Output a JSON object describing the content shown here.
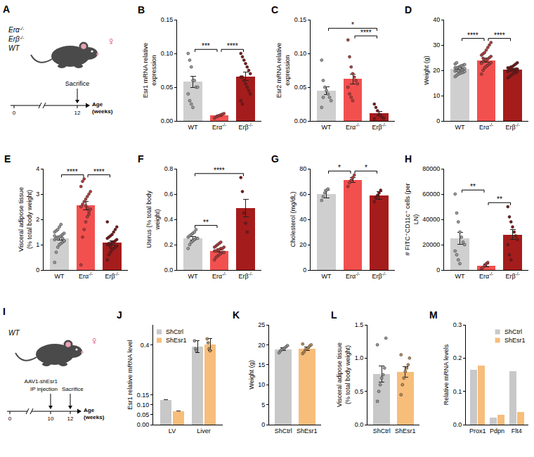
{
  "chart_data": [
    {
      "panel": "B",
      "type": "bar",
      "categories": [
        "WT",
        "Erα-/-",
        "Erβ-/-"
      ],
      "colors": [
        "#cfcfcf",
        "#f2504f",
        "#a51c1c"
      ],
      "values": [
        0.058,
        0.008,
        0.066
      ],
      "errors": [
        0.008,
        0.001,
        0.006
      ],
      "points": [
        [
          0.1,
          0.09,
          0.08,
          0.06,
          0.06,
          0.05,
          0.05,
          0.04,
          0.03,
          0.025,
          0.02
        ],
        [
          0.004,
          0.006,
          0.007,
          0.008,
          0.009,
          0.01,
          0.011
        ],
        [
          0.1,
          0.095,
          0.09,
          0.085,
          0.08,
          0.075,
          0.07,
          0.065,
          0.065,
          0.06,
          0.055,
          0.05,
          0.045,
          0.04,
          0.03,
          0.025
        ]
      ],
      "y_title": "Esr1 mRNA relative expression",
      "ylim": [
        0,
        0.15
      ],
      "yticks": [
        {
          "value": 0,
          "label": "0.00"
        },
        0.05,
        {
          "value": 0.1,
          "label": "0.10"
        },
        0.15
      ],
      "comparisons": [
        {
          "from": 0,
          "to": 1,
          "label": "***"
        },
        {
          "from": 1,
          "to": 2,
          "label": "****"
        }
      ]
    },
    {
      "panel": "C",
      "type": "bar",
      "categories": [
        "WT",
        "Erα-/-",
        "Erβ-/-"
      ],
      "colors": [
        "#cfcfcf",
        "#f2504f",
        "#a51c1c"
      ],
      "values": [
        0.045,
        0.062,
        0.011
      ],
      "errors": [
        0.006,
        0.007,
        0.003
      ],
      "points": [
        [
          0.09,
          0.06,
          0.05,
          0.045,
          0.04,
          0.035,
          0.03,
          0.02,
          0.035
        ],
        [
          0.12,
          0.095,
          0.08,
          0.07,
          0.065,
          0.06,
          0.055,
          0.05,
          0.04,
          0.035,
          0.03
        ],
        [
          0.025,
          0.02,
          0.015,
          0.01,
          0.008,
          0.005,
          0.004,
          0.003
        ]
      ],
      "y_title": "Esr2 mRNA relative expression",
      "ylim": [
        0,
        0.15
      ],
      "yticks": [
        {
          "value": 0,
          "label": "0.00"
        },
        0.05,
        {
          "value": 0.1,
          "label": "0.10"
        },
        0.15
      ],
      "comparisons": [
        {
          "from": 0,
          "to": 2,
          "label": "*"
        },
        {
          "from": 1,
          "to": 2,
          "label": "****"
        }
      ]
    },
    {
      "panel": "D",
      "type": "bar",
      "categories": [
        "WT",
        "Erα-/-",
        "Erβ-/-"
      ],
      "colors": [
        "#cfcfcf",
        "#f2504f",
        "#a51c1c"
      ],
      "values": [
        20.5,
        24,
        20.3
      ],
      "errors": [
        0.4,
        0.8,
        0.3
      ],
      "points": [
        [
          17.5,
          18,
          18.5,
          18.8,
          19,
          19.2,
          19.5,
          19.7,
          20,
          20,
          20.2,
          20.4,
          20.5,
          20.7,
          21,
          21,
          21.2,
          21.5,
          21.8,
          22,
          22.3,
          22.5,
          23,
          19.8,
          20.8
        ],
        [
          18.5,
          20,
          21,
          21.5,
          22,
          22.5,
          23,
          23,
          23.5,
          24,
          24,
          24.5,
          25,
          25.5,
          26,
          26.5,
          27,
          28,
          29,
          30,
          31,
          22.8,
          24.8
        ],
        [
          17,
          17.5,
          18,
          18.5,
          19,
          19,
          19.5,
          19.5,
          20,
          20,
          20,
          20.3,
          20.5,
          20.5,
          21,
          21,
          21.3,
          21.5,
          22,
          22.5,
          23,
          19.8,
          20.2,
          20.8
        ]
      ],
      "y_title": "Weight (g)",
      "ylim": [
        0,
        40
      ],
      "yticks": [
        0,
        10,
        20,
        30,
        40
      ],
      "comparisons": [
        {
          "from": 0,
          "to": 1,
          "label": "****"
        },
        {
          "from": 1,
          "to": 2,
          "label": "****"
        }
      ]
    },
    {
      "panel": "E",
      "type": "bar",
      "categories": [
        "WT",
        "Erα-/-",
        "Erβ-/-"
      ],
      "colors": [
        "#cfcfcf",
        "#f2504f",
        "#a51c1c"
      ],
      "values": [
        1.25,
        2.55,
        1.08
      ],
      "errors": [
        0.07,
        0.17,
        0.08
      ],
      "points": [
        [
          0.3,
          0.7,
          0.9,
          1.0,
          1.05,
          1.1,
          1.15,
          1.2,
          1.25,
          1.3,
          1.3,
          1.35,
          1.4,
          1.45,
          1.5,
          1.55,
          1.6,
          1.7,
          1.8,
          1.25,
          1.15,
          1.35
        ],
        [
          0.2,
          1.3,
          1.6,
          1.9,
          2.1,
          2.3,
          2.4,
          2.5,
          2.6,
          2.7,
          2.8,
          2.9,
          3.0,
          3.1,
          3.3,
          3.5,
          3.6,
          2.55,
          2.45,
          2.2
        ],
        [
          0.4,
          0.6,
          0.7,
          0.8,
          0.85,
          0.9,
          0.95,
          1.0,
          1.0,
          1.05,
          1.1,
          1.1,
          1.15,
          1.2,
          1.25,
          1.3,
          1.35,
          1.4,
          1.5,
          1.6,
          1.7,
          1.9,
          1.05,
          0.9
        ]
      ],
      "y_title": "Visceral adipose tissue (% total body weight)",
      "ylim": [
        0,
        4
      ],
      "yticks": [
        0,
        1,
        2,
        3,
        4
      ],
      "comparisons": [
        {
          "from": 0,
          "to": 1,
          "label": "****"
        },
        {
          "from": 1,
          "to": 2,
          "label": "****"
        }
      ]
    },
    {
      "panel": "F",
      "type": "bar",
      "categories": [
        "WT",
        "Erα-/-",
        "Erβ-/-"
      ],
      "colors": [
        "#cfcfcf",
        "#f2504f",
        "#a51c1c"
      ],
      "values": [
        0.25,
        0.15,
        0.49
      ],
      "errors": [
        0.015,
        0.01,
        0.07
      ],
      "points": [
        [
          0.17,
          0.2,
          0.22,
          0.23,
          0.24,
          0.25,
          0.25,
          0.26,
          0.27,
          0.28,
          0.29,
          0.3,
          0.32
        ],
        [
          0.08,
          0.1,
          0.11,
          0.12,
          0.13,
          0.14,
          0.14,
          0.15,
          0.15,
          0.16,
          0.16,
          0.17,
          0.17,
          0.18,
          0.18,
          0.19,
          0.2,
          0.21,
          0.22
        ],
        [
          0.73,
          0.62,
          0.45,
          0.37,
          0.3
        ]
      ],
      "y_title": "Uterus (% total body weight)",
      "ylim": [
        0,
        0.8
      ],
      "yticks": [
        {
          "value": 0,
          "label": "0.0"
        },
        0.2,
        0.4,
        0.6,
        0.8
      ],
      "comparisons": [
        {
          "from": 0,
          "to": 1,
          "label": "**"
        },
        {
          "from": 0,
          "to": 2,
          "label": "****"
        }
      ]
    },
    {
      "panel": "G",
      "type": "bar",
      "categories": [
        "WT",
        "Erα-/-",
        "Erβ-/-"
      ],
      "colors": [
        "#cfcfcf",
        "#f2504f",
        "#a51c1c"
      ],
      "values": [
        60,
        71,
        59
      ],
      "errors": [
        3,
        2,
        3
      ],
      "points": [
        [
          55,
          58,
          61,
          63,
          64
        ],
        [
          66,
          69,
          71,
          73,
          75
        ],
        [
          54,
          57,
          59,
          61,
          63
        ]
      ],
      "y_title": "Cholesterol (mg/dL)",
      "ylim": [
        0,
        80
      ],
      "yticks": [
        0,
        20,
        40,
        60,
        80
      ],
      "comparisons": [
        {
          "from": 0,
          "to": 1,
          "label": "*"
        },
        {
          "from": 1,
          "to": 2,
          "label": "*"
        }
      ]
    },
    {
      "panel": "H",
      "type": "bar",
      "categories": [
        "WT",
        "Erα-/-",
        "Erβ-/-"
      ],
      "colors": [
        "#cfcfcf",
        "#f2504f",
        "#a51c1c"
      ],
      "values": [
        25000,
        3500,
        28000
      ],
      "errors": [
        4500,
        1000,
        4000
      ],
      "points": [
        [
          60000,
          45000,
          38000,
          30000,
          26000,
          22000,
          20000,
          15000,
          12000,
          8000,
          5000
        ],
        [
          1000,
          2000,
          3500,
          5000,
          6000
        ],
        [
          50000,
          42000,
          38000,
          34000,
          30000,
          27000,
          24000,
          20000,
          12000,
          8000
        ]
      ],
      "y_title": "# FITC⁺CD11c⁺ cells (per LN)",
      "ylim": [
        0,
        80000
      ],
      "yticks": [
        0,
        20000,
        40000,
        60000,
        80000
      ],
      "comparisons": [
        {
          "from": 0,
          "to": 1,
          "label": "**"
        },
        {
          "from": 1,
          "to": 2,
          "label": "**"
        }
      ]
    },
    {
      "panel": "J",
      "type": "bar",
      "categories": [
        "LV",
        "Liver"
      ],
      "legend": "upper left",
      "series": [
        {
          "name": "ShCtrl",
          "color": "#c8c8c8",
          "values": [
            0.125,
            0.39
          ],
          "errors": [
            null,
            0.03
          ],
          "points": [
            [],
            [
              0.42,
              0.38,
              0.37
            ]
          ]
        },
        {
          "name": "ShEsr1",
          "color": "#f7bd7a",
          "values": [
            0.068,
            0.4
          ],
          "errors": [
            null,
            0.03
          ],
          "points": [
            [],
            [
              0.43,
              0.41,
              0.38,
              0.37
            ]
          ]
        }
      ],
      "y_title": "Esr1 relative mRNA level",
      "ylim": [
        0,
        0.5
      ],
      "yticks": [
        {
          "value": 0,
          "label": "0.00"
        },
        0.05,
        {
          "value": 0.1,
          "label": "0.10"
        },
        0.15,
        0.4
      ]
    },
    {
      "panel": "K",
      "type": "bar",
      "categories": [
        "ShCtrl",
        "ShEsr1"
      ],
      "colors": [
        "#c8c8c8",
        "#f7bd7a"
      ],
      "values": [
        18.9,
        19.0
      ],
      "errors": [
        0.3,
        0.4
      ],
      "points": [
        [
          18,
          18.5,
          18.8,
          19,
          19.2,
          19.5,
          19.8
        ],
        [
          17.8,
          18.2,
          18.8,
          19,
          19.3,
          19.7,
          20,
          20.2
        ]
      ],
      "y_title": "Weight (g)",
      "ylim": [
        0,
        25
      ],
      "yticks": [
        0,
        5,
        10,
        15,
        20,
        25
      ]
    },
    {
      "panel": "L",
      "type": "bar",
      "categories": [
        "ShCtrl",
        "ShEsr1"
      ],
      "colors": [
        "#c8c8c8",
        "#f7bd7a"
      ],
      "values": [
        0.76,
        0.79
      ],
      "errors": [
        0.12,
        0.08
      ],
      "points": [
        [
          0.35,
          0.5,
          0.6,
          0.7,
          0.75,
          0.85,
          1.3,
          1.2
        ],
        [
          0.45,
          0.6,
          0.7,
          0.8,
          0.85,
          0.9,
          1.0,
          1.05
        ]
      ],
      "y_title": "Visceral adipose tissue (% total body weight)",
      "ylim": [
        0,
        1.5
      ],
      "yticks": [
        {
          "value": 0,
          "label": "0.0"
        },
        0.5,
        {
          "value": 1,
          "label": "1.0"
        },
        1.5
      ]
    },
    {
      "panel": "M",
      "type": "bar",
      "categories": [
        "Prox1",
        "Pdpn",
        "Flt4"
      ],
      "legend": "upper right",
      "series": [
        {
          "name": "ShCtrl",
          "color": "#c8c8c8",
          "values": [
            0.165,
            0.022,
            0.16
          ]
        },
        {
          "name": "ShEsr1",
          "color": "#f7bd7a",
          "values": [
            0.177,
            0.03,
            0.038
          ]
        }
      ],
      "y_title": "Relative mRNA levels",
      "ylim": [
        0,
        0.3
      ],
      "yticks": [
        {
          "value": 0,
          "label": "0.0"
        },
        0.1,
        0.2,
        0.3
      ]
    }
  ],
  "diagrams": [
    {
      "panel": "A",
      "genotypes": [
        "Erα-/-",
        "Erβ-/-",
        "WT"
      ],
      "sex": "♀",
      "event": "Sacrifice",
      "timeline": {
        "ticks": [
          "0",
          "12"
        ],
        "label": "Age (weeks)"
      }
    },
    {
      "panel": "I",
      "genotypes": [
        "WT"
      ],
      "sex": "♀",
      "injection": [
        "AAV1-shEsr1",
        "IP injection"
      ],
      "event": "Sacrifice",
      "timeline": {
        "ticks": [
          "0",
          "10",
          "12"
        ],
        "label": "Age (weeks)"
      }
    }
  ]
}
